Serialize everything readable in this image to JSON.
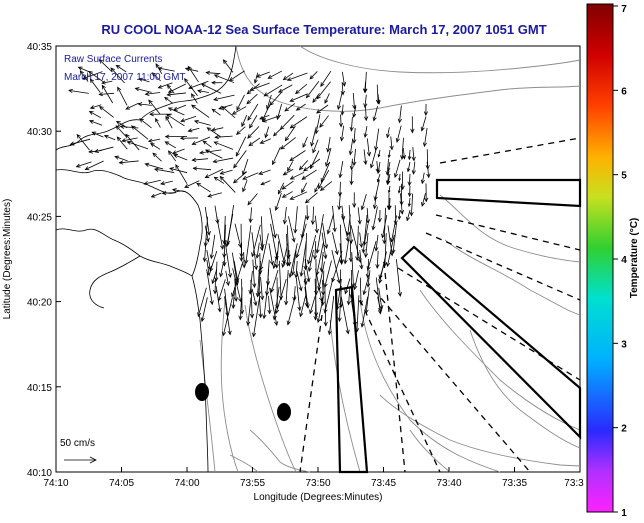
{
  "title": "RU COOL  NOAA-12  Sea Surface Temperature:  March 17, 2007 1051 GMT",
  "subtitle_line1": "Raw Surface Currents",
  "subtitle_line2": "March 17, 2007 11:00 GMT",
  "xlabel": "Longitude (Degrees:Minutes)",
  "ylabel": "Latitude (Degrees:Minutes)",
  "x_ticks": [
    "74:10",
    "74:05",
    "74:00",
    "73:55",
    "73:50",
    "73:45",
    "73:40",
    "73:35",
    "73:3"
  ],
  "y_ticks": [
    "40:35",
    "40:30",
    "40:25",
    "40:20",
    "40:15",
    "40:10"
  ],
  "colorbar_label": "Temperature (°C)",
  "colorbar_ticks": [
    "7",
    "6",
    "5",
    "4",
    "3",
    "2",
    "1"
  ],
  "scale_label": "50 cm/s",
  "colors": {
    "title_color": "#1a1aa0",
    "land_line": "#000000",
    "bathymetry": "#8c8c8c",
    "frame": "#000000"
  },
  "legend_colorbar_stops": [
    "#ff22ff",
    "#7a2aff",
    "#2a2aff",
    "#00c0ff",
    "#20e0a0",
    "#30d030",
    "#d0e020",
    "#ffb000",
    "#ff4000",
    "#d00000",
    "#800000"
  ]
}
